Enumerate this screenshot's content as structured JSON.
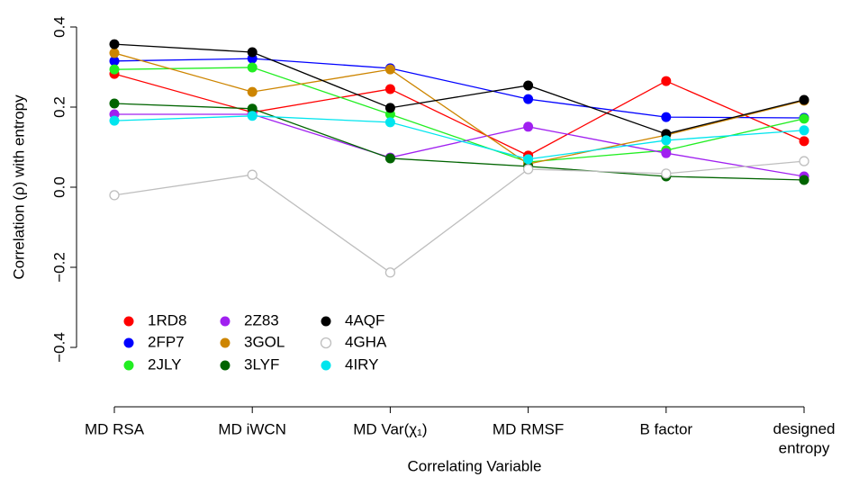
{
  "chart_data": {
    "type": "line",
    "x_label": "Correlating Variable",
    "y_label": "Correlation (ρ) with entropy",
    "categories": [
      "MD RSA",
      "MD iWCN",
      "MD Var(χ₁)",
      "MD RMSF",
      "B factor",
      "designed\nentropy"
    ],
    "ylim": [
      -0.4,
      0.4
    ],
    "yticks": [
      {
        "value": -0.4,
        "label": "−0.4"
      },
      {
        "value": -0.2,
        "label": "−0.2"
      },
      {
        "value": 0,
        "label": "0.0"
      },
      0.2,
      0.4
    ],
    "legend": "bottom-left",
    "series": [
      {
        "name": "1RD8",
        "color": "#ff0000",
        "marker": "filled",
        "values": [
          0.283,
          0.187,
          0.245,
          0.079,
          0.265,
          0.115
        ]
      },
      {
        "name": "2FP7",
        "color": "#0000ff",
        "marker": "filled",
        "values": [
          0.315,
          0.321,
          0.297,
          0.22,
          0.175,
          0.173
        ]
      },
      {
        "name": "2JLY",
        "color": "#22ee22",
        "marker": "filled",
        "values": [
          0.294,
          0.299,
          0.182,
          0.063,
          0.092,
          0.171
        ]
      },
      {
        "name": "2Z83",
        "color": "#a020f0",
        "marker": "filled",
        "values": [
          0.182,
          0.182,
          0.074,
          0.151,
          0.085,
          0.027
        ]
      },
      {
        "name": "3GOL",
        "color": "#cd8500",
        "marker": "filled",
        "values": [
          0.335,
          0.238,
          0.294,
          0.058,
          0.13,
          0.216
        ]
      },
      {
        "name": "3LYF",
        "color": "#006400",
        "marker": "filled",
        "values": [
          0.209,
          0.196,
          0.072,
          0.052,
          0.027,
          0.018
        ]
      },
      {
        "name": "4AQF",
        "color": "#000000",
        "marker": "filled",
        "values": [
          0.357,
          0.337,
          0.198,
          0.254,
          0.133,
          0.218
        ]
      },
      {
        "name": "4GHA",
        "color": "#bebebe",
        "marker": "open",
        "values": [
          -0.02,
          0.031,
          -0.213,
          0.045,
          0.034,
          0.065
        ]
      },
      {
        "name": "4IRY",
        "color": "#00e5ee",
        "marker": "filled",
        "values": [
          0.166,
          0.178,
          0.162,
          0.07,
          0.117,
          0.142
        ]
      }
    ]
  }
}
